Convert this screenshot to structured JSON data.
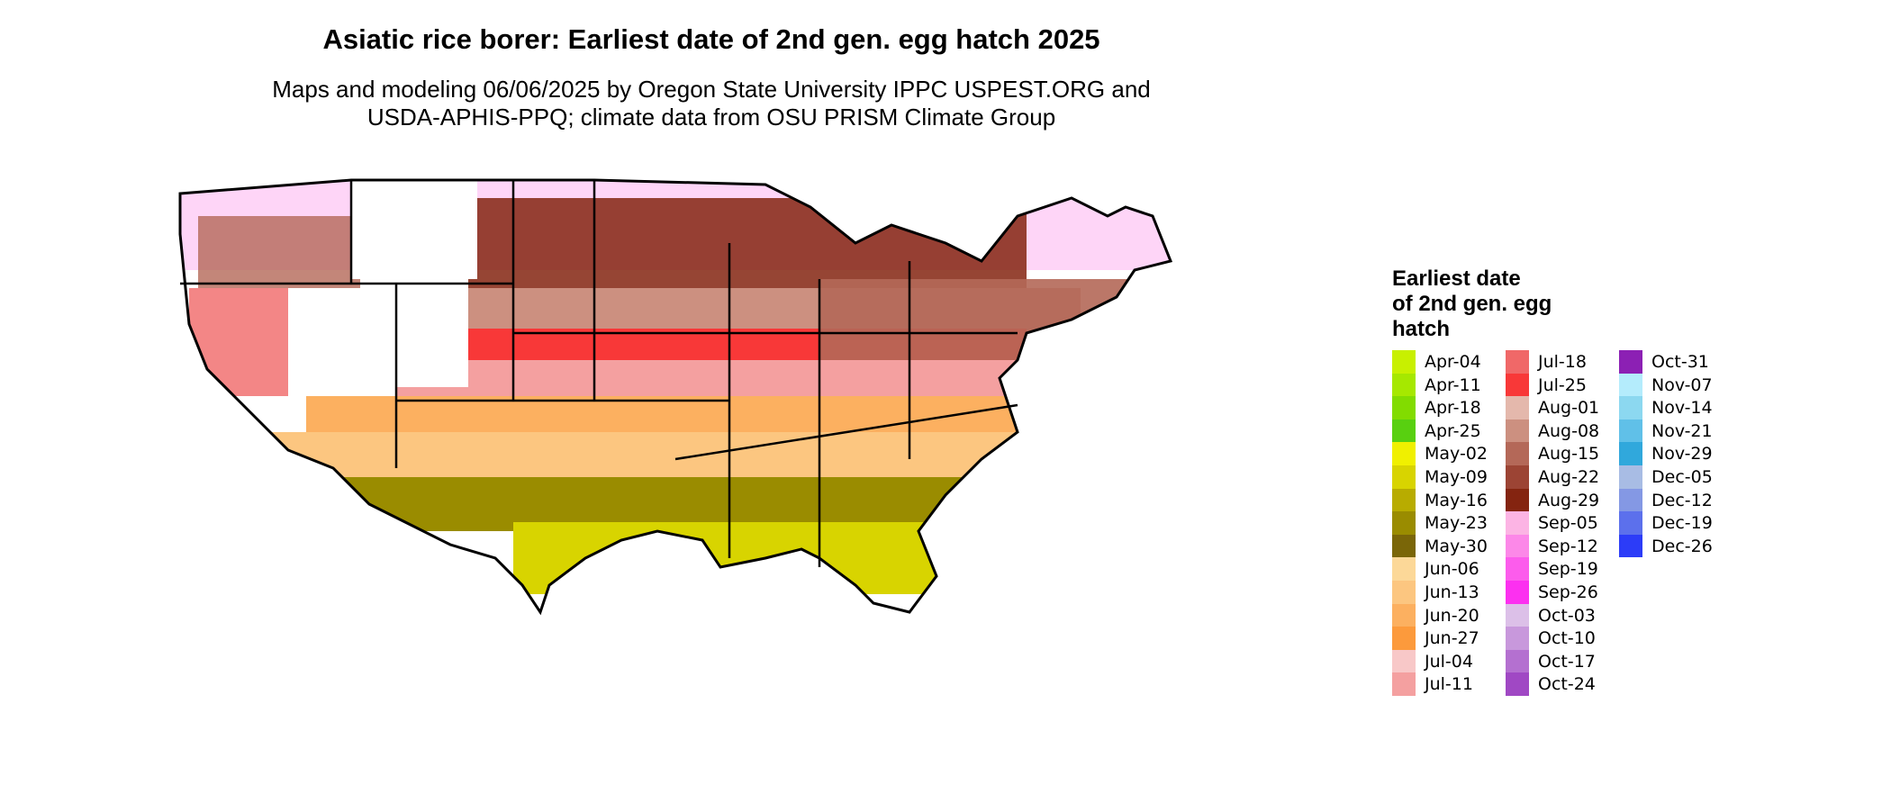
{
  "title": "Asiatic rice borer: Earliest date of 2nd gen. egg hatch 2025",
  "subtitle_line1": "Maps and modeling 06/06/2025 by Oregon State University IPPC USPEST.ORG and",
  "subtitle_line2": "USDA-APHIS-PPQ; climate data from OSU PRISM Climate Group",
  "legend": {
    "title_lines": [
      "Earliest date",
      "of 2nd gen. egg",
      "hatch"
    ],
    "columns": [
      [
        {
          "label": "Apr-04",
          "color": "#c8f000"
        },
        {
          "label": "Apr-11",
          "color": "#a6e800"
        },
        {
          "label": "Apr-18",
          "color": "#82dc00"
        },
        {
          "label": "Apr-25",
          "color": "#58d010"
        },
        {
          "label": "May-02",
          "color": "#f0f000"
        },
        {
          "label": "May-09",
          "color": "#d8d400"
        },
        {
          "label": "May-16",
          "color": "#b8ac00"
        },
        {
          "label": "May-23",
          "color": "#9a8c00"
        },
        {
          "label": "May-30",
          "color": "#7a6608"
        },
        {
          "label": "Jun-06",
          "color": "#fcd898"
        },
        {
          "label": "Jun-13",
          "color": "#fcc680"
        },
        {
          "label": "Jun-20",
          "color": "#fcb060"
        },
        {
          "label": "Jun-27",
          "color": "#fc9a3c"
        },
        {
          "label": "Jul-04",
          "color": "#f8c8c8"
        },
        {
          "label": "Jul-11",
          "color": "#f4a0a0"
        }
      ],
      [
        {
          "label": "Jul-18",
          "color": "#f06868"
        },
        {
          "label": "Jul-25",
          "color": "#f83838"
        },
        {
          "label": "Aug-01",
          "color": "#e4b8ac"
        },
        {
          "label": "Aug-08",
          "color": "#cc9080"
        },
        {
          "label": "Aug-15",
          "color": "#b46858"
        },
        {
          "label": "Aug-22",
          "color": "#9c4434"
        },
        {
          "label": "Aug-29",
          "color": "#842410"
        },
        {
          "label": "Sep-05",
          "color": "#fcb4e4"
        },
        {
          "label": "Sep-12",
          "color": "#fc88e8"
        },
        {
          "label": "Sep-19",
          "color": "#fc5cec"
        },
        {
          "label": "Sep-26",
          "color": "#fc30f0"
        },
        {
          "label": "Oct-03",
          "color": "#dcc0e8"
        },
        {
          "label": "Oct-10",
          "color": "#c898dc"
        },
        {
          "label": "Oct-17",
          "color": "#b470d0"
        },
        {
          "label": "Oct-24",
          "color": "#a048c4"
        }
      ],
      [
        {
          "label": "Oct-31",
          "color": "#8c20b4"
        },
        {
          "label": "Nov-07",
          "color": "#b4ecfc"
        },
        {
          "label": "Nov-14",
          "color": "#8cd8f0"
        },
        {
          "label": "Nov-21",
          "color": "#60c0e8"
        },
        {
          "label": "Nov-29",
          "color": "#30a8dc"
        },
        {
          "label": "Dec-05",
          "color": "#a8bce4"
        },
        {
          "label": "Dec-12",
          "color": "#8498e4"
        },
        {
          "label": "Dec-19",
          "color": "#5c70ec"
        },
        {
          "label": "Dec-26",
          "color": "#2c3cf8"
        }
      ]
    ]
  }
}
